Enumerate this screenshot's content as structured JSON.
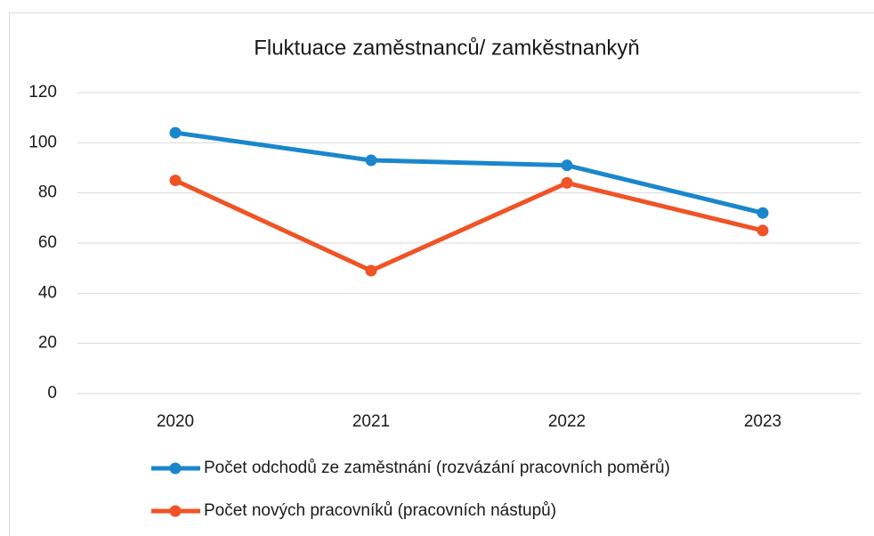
{
  "chart_data": {
    "type": "line",
    "title": "Fluktuace zaměstnanců/ zamkěstnankyň",
    "categories": [
      "2020",
      "2021",
      "2022",
      "2023"
    ],
    "series": [
      {
        "name": "Počet odchodů ze zaměstnání (rozvázání pracovních poměrů)",
        "color": "#1a86cc",
        "values": [
          104,
          93,
          91,
          72
        ]
      },
      {
        "name": "Počet nových pracovníků (pracovních nástupů)",
        "color": "#ef5326",
        "values": [
          85,
          49,
          84,
          65
        ]
      }
    ],
    "ylim": [
      0,
      120
    ],
    "yticks": [
      0,
      20,
      40,
      60,
      80,
      100,
      120
    ],
    "grid": true,
    "legend": "bottom"
  }
}
